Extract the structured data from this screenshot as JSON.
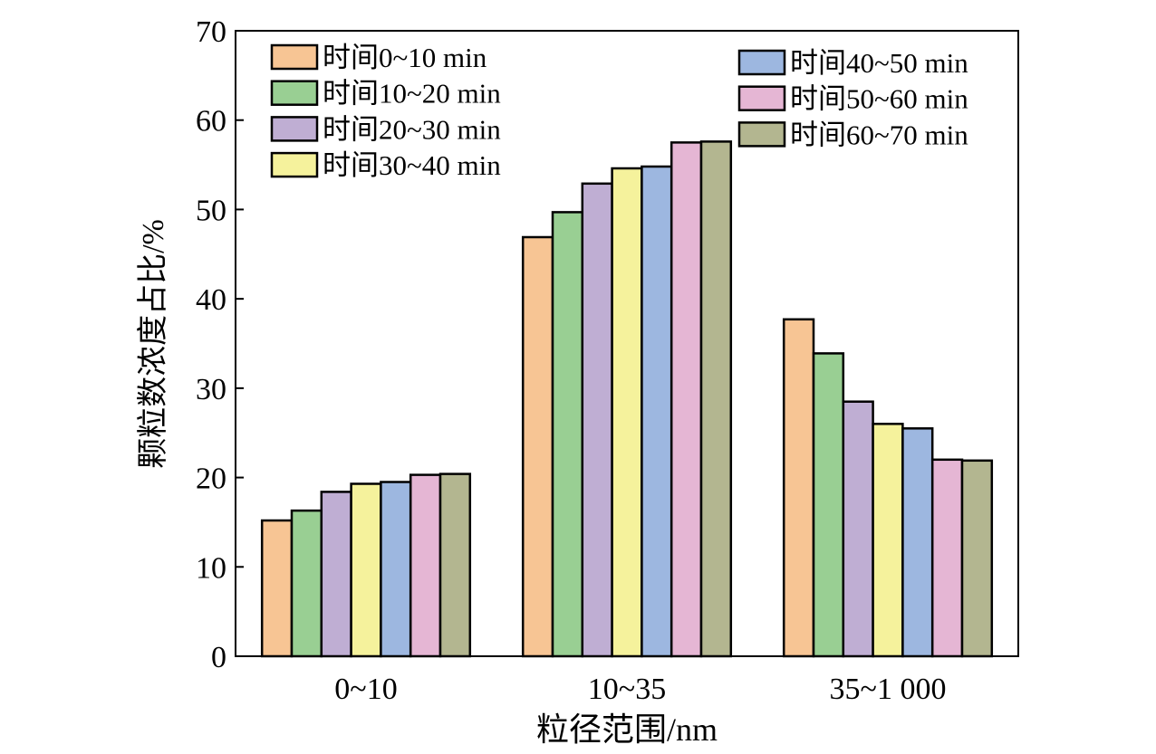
{
  "chart_data": {
    "type": "bar",
    "categories": [
      "0~10",
      "10~35",
      "35~1 000"
    ],
    "series": [
      {
        "name": "时间0~10 min",
        "color": "#f7c594",
        "values": [
          15.2,
          46.9,
          37.7
        ]
      },
      {
        "name": "时间10~20 min",
        "color": "#99cf93",
        "values": [
          16.3,
          49.7,
          33.9
        ]
      },
      {
        "name": "时间20~30 min",
        "color": "#bfaed3",
        "values": [
          18.4,
          52.9,
          28.5
        ]
      },
      {
        "name": "时间30~40 min",
        "color": "#f5f29c",
        "values": [
          19.3,
          54.6,
          26.0
        ]
      },
      {
        "name": "时间40~50 min",
        "color": "#9db7e0",
        "values": [
          19.5,
          54.8,
          25.5
        ]
      },
      {
        "name": "时间50~60 min",
        "color": "#e5b6d4",
        "values": [
          20.3,
          57.5,
          22.0
        ]
      },
      {
        "name": "时间60~70 min",
        "color": "#b3b690",
        "values": [
          20.4,
          57.6,
          21.9
        ]
      }
    ],
    "xlabel": "粒径范围/nm",
    "ylabel": "颗粒数浓度占比/%",
    "ylim": [
      0,
      70
    ],
    "yticks": [
      "0",
      "10",
      "20",
      "30",
      "40",
      "50",
      "60",
      "70"
    ],
    "grid": false,
    "legend_position": "top"
  }
}
